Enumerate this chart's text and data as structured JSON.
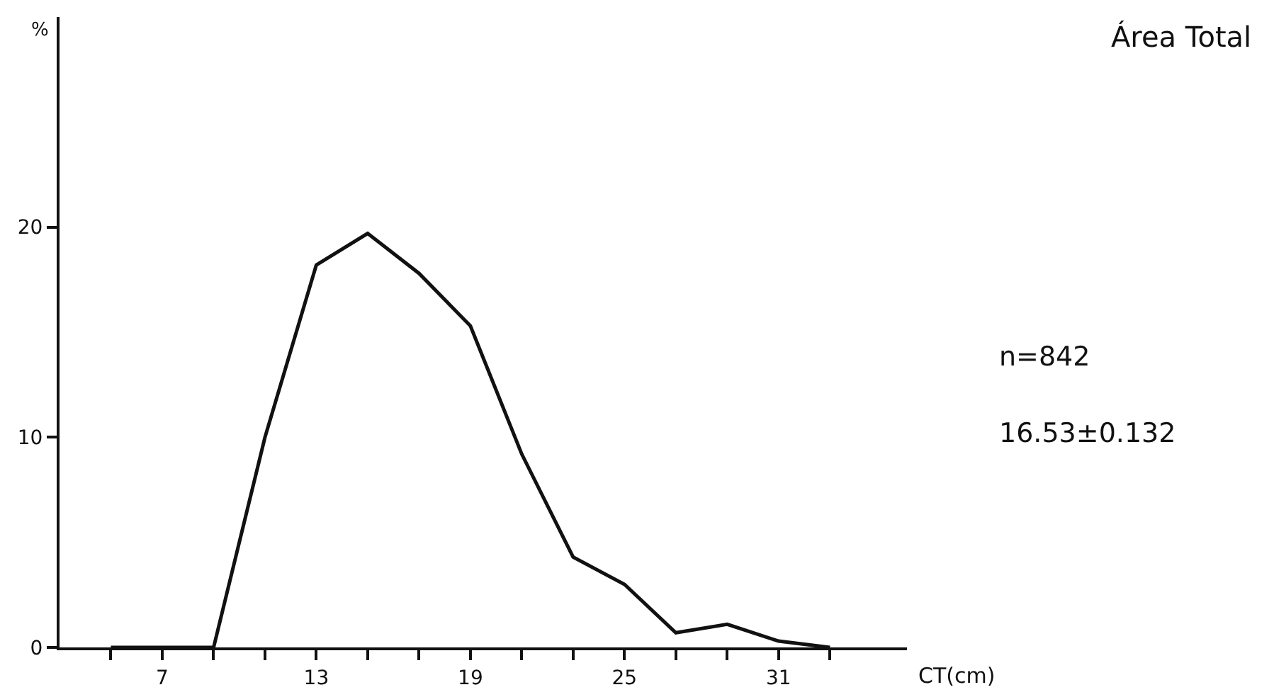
{
  "chart_data": {
    "type": "line",
    "title": "Área Total",
    "xlabel": "CT(cm)",
    "ylabel": "%",
    "x": [
      5,
      7,
      9,
      11,
      13,
      15,
      17,
      19,
      21,
      23,
      25,
      27,
      29,
      31,
      33
    ],
    "series": [
      {
        "color": "#111111",
        "values": [
          0,
          0,
          0,
          10.0,
          18.2,
          19.7,
          17.8,
          15.3,
          9.2,
          4.3,
          3.0,
          0.7,
          1.1,
          0.3,
          0
        ]
      }
    ],
    "xlim": [
      3,
      36
    ],
    "ylim": [
      0,
      30
    ],
    "xticks": [
      {
        "value": 5,
        "label": null
      },
      7,
      {
        "value": 9,
        "label": null
      },
      {
        "value": 11,
        "label": null
      },
      13,
      {
        "value": 15,
        "label": null
      },
      {
        "value": 17,
        "label": null
      },
      19,
      {
        "value": 21,
        "label": null
      },
      {
        "value": 23,
        "label": null
      },
      25,
      {
        "value": 27,
        "label": null
      },
      {
        "value": 29,
        "label": null
      },
      31,
      {
        "value": 33,
        "label": null
      }
    ],
    "yticks": [
      0,
      10,
      20
    ],
    "marker": "none",
    "line_style": "solid",
    "annotations": [
      "n=842",
      "16.53±0.132"
    ]
  }
}
